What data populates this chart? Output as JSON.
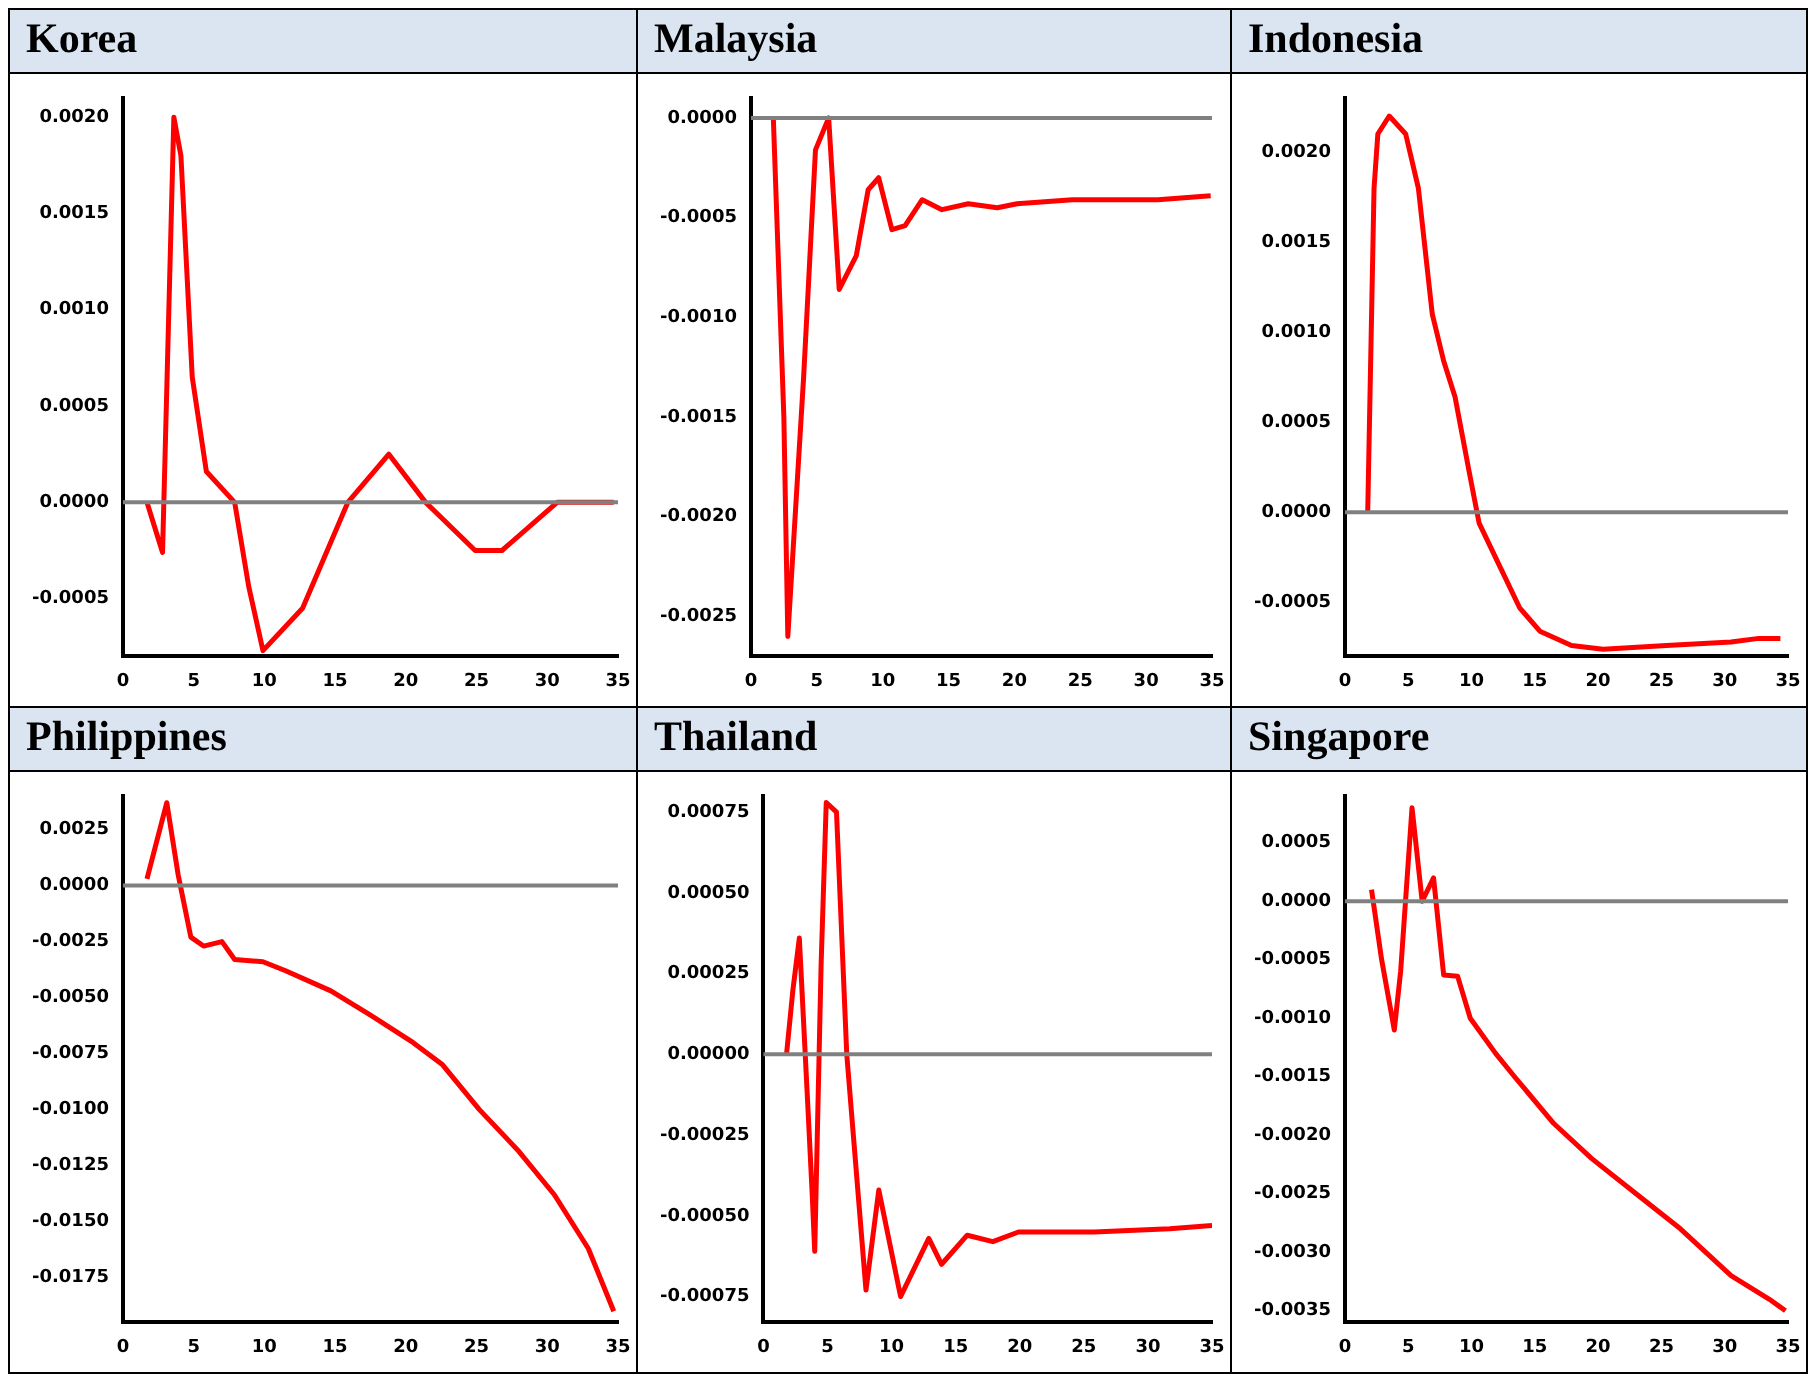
{
  "chart_data": [
    {
      "type": "line",
      "title": "Korea",
      "xlim": [
        0,
        35
      ],
      "xticks": [
        0,
        5,
        10,
        15,
        20,
        25,
        30,
        35
      ],
      "ylim": [
        -0.0008,
        0.0021
      ],
      "yticks": [
        {
          "value": -0.0005,
          "label": "-0.0005"
        },
        {
          "value": 0,
          "label": "0.0000"
        },
        {
          "value": 0.0005,
          "label": "0.0005"
        },
        {
          "value": 0.001,
          "label": "0.0010"
        },
        {
          "value": 0.0015,
          "label": "0.0015"
        },
        {
          "value": 0.002,
          "label": "0.0020"
        }
      ],
      "grid": false,
      "legend": false,
      "marker": "none",
      "ref_lines": [
        {
          "axis": "y",
          "value": 0,
          "color": "#808080"
        }
      ],
      "series": [
        {
          "color": "#ff0000",
          "x": [
            1.7,
            2.8,
            3.6,
            4.1,
            4.9,
            5.9,
            7.9,
            8.9,
            9.9,
            12.7,
            15.9,
            18.8,
            21.4,
            24.9,
            26.8,
            30.7,
            32.3,
            34.7
          ],
          "values": [
            0,
            -0.00026,
            0.002,
            0.0018,
            0.00065,
            0.00016,
            0,
            -0.00044,
            -0.00077,
            -0.00055,
            0,
            0.00025,
            0,
            -0.00025,
            -0.00025,
            0,
            0,
            0
          ]
        }
      ]
    },
    {
      "type": "line",
      "title": "Malaysia",
      "xlim": [
        0,
        35
      ],
      "xticks": [
        0,
        5,
        10,
        15,
        20,
        25,
        30,
        35
      ],
      "ylim": [
        -0.0027,
        0.0001
      ],
      "yticks": [
        {
          "value": -0.0025,
          "label": "-0.0025"
        },
        {
          "value": -0.002,
          "label": "-0.0020"
        },
        {
          "value": -0.0015,
          "label": "-0.0015"
        },
        {
          "value": -0.001,
          "label": "-0.0010"
        },
        {
          "value": -0.0005,
          "label": "-0.0005"
        },
        {
          "value": 0,
          "label": "0.0000"
        }
      ],
      "grid": false,
      "legend": false,
      "marker": "none",
      "ref_lines": [
        {
          "axis": "y",
          "value": 0,
          "color": "#808080"
        }
      ],
      "series": [
        {
          "color": "#ff0000",
          "x": [
            1.7,
            2.5,
            2.8,
            4,
            4.9,
            5.9,
            6.7,
            8,
            8.9,
            9.7,
            10.7,
            11.7,
            13,
            14.5,
            16.5,
            18.7,
            20.2,
            24.4,
            30.9,
            34.9
          ],
          "values": [
            0,
            -0.0015,
            -0.0026,
            -0.0013,
            -0.00016,
            0,
            -0.00086,
            -0.00069,
            -0.00036,
            -0.0003,
            -0.00056,
            -0.00054,
            -0.00041,
            -0.00046,
            -0.00043,
            -0.00045,
            -0.00043,
            -0.00041,
            -0.00041,
            -0.00039
          ]
        }
      ]
    },
    {
      "type": "line",
      "title": "Indonesia",
      "xlim": [
        0,
        35
      ],
      "xticks": [
        0,
        5,
        10,
        15,
        20,
        25,
        30,
        35
      ],
      "ylim": [
        -0.0008,
        0.0023
      ],
      "yticks": [
        {
          "value": -0.0005,
          "label": "-0.0005"
        },
        {
          "value": 0,
          "label": "0.0000"
        },
        {
          "value": 0.0005,
          "label": "0.0005"
        },
        {
          "value": 0.001,
          "label": "0.0010"
        },
        {
          "value": 0.0015,
          "label": "0.0015"
        },
        {
          "value": 0.002,
          "label": "0.0020"
        }
      ],
      "grid": false,
      "legend": false,
      "marker": "none",
      "ref_lines": [
        {
          "axis": "y",
          "value": 0,
          "color": "#808080"
        }
      ],
      "series": [
        {
          "color": "#ff0000",
          "x": [
            1.8,
            2.3,
            2.6,
            3.5,
            4.8,
            5.8,
            6.9,
            7.8,
            8.7,
            9.8,
            10.6,
            12.3,
            13.8,
            15.4,
            17.9,
            20.4,
            25.4,
            30.5,
            32.7,
            34.4
          ],
          "values": [
            0,
            0.0018,
            0.0021,
            0.0022,
            0.0021,
            0.0018,
            0.0011,
            0.00084,
            0.00064,
            0.00023,
            -6e-05,
            -0.00031,
            -0.00053,
            -0.00066,
            -0.00074,
            -0.00076,
            -0.00074,
            -0.00072,
            -0.0007,
            -0.0007
          ]
        }
      ]
    },
    {
      "type": "line",
      "title": "Philippines",
      "xlim": [
        0,
        35
      ],
      "xticks": [
        0,
        5,
        10,
        15,
        20,
        25,
        30,
        35
      ],
      "ylim": [
        -0.0195,
        0.004
      ],
      "yticks": [
        {
          "value": -0.0175,
          "label": "-0.0175"
        },
        {
          "value": -0.015,
          "label": "-0.0150"
        },
        {
          "value": -0.0125,
          "label": "-0.0125"
        },
        {
          "value": -0.01,
          "label": "-0.0100"
        },
        {
          "value": -0.0075,
          "label": "-0.0075"
        },
        {
          "value": -0.005,
          "label": "-0.0050"
        },
        {
          "value": -0.0025,
          "label": "-0.0025"
        },
        {
          "value": 0,
          "label": "0.0000"
        },
        {
          "value": 0.0025,
          "label": "0.0025"
        }
      ],
      "grid": false,
      "legend": false,
      "marker": "none",
      "ref_lines": [
        {
          "axis": "y",
          "value": 0,
          "color": "#808080"
        }
      ],
      "series": [
        {
          "color": "#ff0000",
          "x": [
            1.7,
            3.1,
            3.9,
            4.8,
            5.7,
            7,
            7.9,
            9.9,
            11.5,
            14.7,
            17.3,
            20.5,
            22.6,
            25.2,
            27.9,
            30.5,
            32.9,
            34.7
          ],
          "values": [
            0.0003,
            0.0037,
            0.0005,
            -0.0023,
            -0.0027,
            -0.0025,
            -0.0033,
            -0.0034,
            -0.0038,
            -0.0047,
            -0.0057,
            -0.007,
            -0.008,
            -0.01,
            -0.0118,
            -0.0138,
            -0.0162,
            -0.019
          ]
        }
      ]
    },
    {
      "type": "line",
      "title": "Thailand",
      "xlim": [
        0,
        35
      ],
      "xticks": [
        0,
        5,
        10,
        15,
        20,
        25,
        30,
        35
      ],
      "ylim": [
        -0.00083,
        0.0008
      ],
      "yticks": [
        {
          "value": -0.00075,
          "label": "-0.00075"
        },
        {
          "value": -0.0005,
          "label": "-0.00050"
        },
        {
          "value": -0.00025,
          "label": "-0.00025"
        },
        {
          "value": 0,
          "label": "0.00000"
        },
        {
          "value": 0.00025,
          "label": "0.00025"
        },
        {
          "value": 0.0005,
          "label": "0.00050"
        },
        {
          "value": 0.00075,
          "label": "0.00075"
        }
      ],
      "grid": false,
      "legend": false,
      "marker": "none",
      "ref_lines": [
        {
          "axis": "y",
          "value": 0,
          "color": "#808080"
        }
      ],
      "series": [
        {
          "color": "#ff0000",
          "x": [
            1.8,
            2.3,
            2.8,
            3.4,
            3.8,
            4,
            4.5,
            4.9,
            5.7,
            6.5,
            8,
            9,
            10.7,
            12.9,
            13.9,
            15.9,
            17.9,
            19.9,
            25.8,
            31.7,
            35
          ],
          "values": [
            0,
            0.0002,
            0.00036,
            -0.00011,
            -0.00043,
            -0.00061,
            0.00028,
            0.00078,
            0.00075,
            0,
            -0.00073,
            -0.00042,
            -0.00075,
            -0.00057,
            -0.00065,
            -0.00056,
            -0.00058,
            -0.00055,
            -0.00055,
            -0.00054,
            -0.00053
          ]
        }
      ]
    },
    {
      "type": "line",
      "title": "Singapore",
      "xlim": [
        0,
        35
      ],
      "xticks": [
        0,
        5,
        10,
        15,
        20,
        25,
        30,
        35
      ],
      "ylim": [
        -0.0036,
        0.0009
      ],
      "yticks": [
        {
          "value": -0.0035,
          "label": "-0.0035"
        },
        {
          "value": -0.003,
          "label": "-0.0030"
        },
        {
          "value": -0.0025,
          "label": "-0.0025"
        },
        {
          "value": -0.002,
          "label": "-0.0020"
        },
        {
          "value": -0.0015,
          "label": "-0.0015"
        },
        {
          "value": -0.001,
          "label": "-0.0010"
        },
        {
          "value": -0.0005,
          "label": "-0.0005"
        },
        {
          "value": 0,
          "label": "0.0000"
        },
        {
          "value": 0.0005,
          "label": "0.0005"
        }
      ],
      "grid": false,
      "legend": false,
      "marker": "none",
      "ref_lines": [
        {
          "axis": "y",
          "value": 0,
          "color": "#808080"
        }
      ],
      "series": [
        {
          "color": "#ff0000",
          "x": [
            2.1,
            2.9,
            3.9,
            4.4,
            5.3,
            6.1,
            7,
            7.8,
            8.9,
            9.9,
            11.9,
            13.4,
            16.5,
            19.5,
            23,
            26.5,
            30.5,
            33.5,
            34.8
          ],
          "values": [
            0.0001,
            -0.0005,
            -0.0011,
            -0.0006,
            0.0008,
            0,
            0.0002,
            -0.00063,
            -0.00064,
            -0.001,
            -0.0013,
            -0.0015,
            -0.0019,
            -0.0022,
            -0.0025,
            -0.0028,
            -0.0032,
            -0.0034,
            -0.0035
          ]
        }
      ]
    }
  ]
}
